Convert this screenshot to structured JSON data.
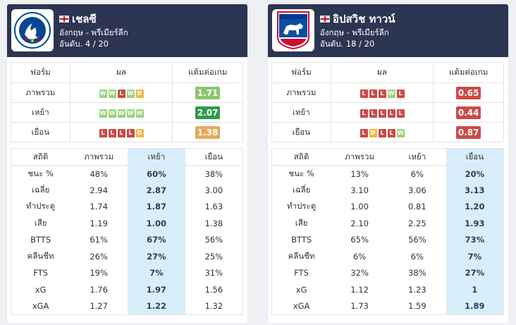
{
  "colors": {
    "header_bg": "#2c3552",
    "win": "#9bd37c",
    "draw": "#efb84b",
    "loss": "#cb4b47",
    "highlight_col": "#d9eefb"
  },
  "left": {
    "team_name": "เชลซี",
    "league": "อังกฤษ - พรีเมียร์ลีก",
    "rank": "อันดับ. 4 / 20",
    "logo_icon": "chelsea-crest",
    "form_headers": [
      "ฟอร์ม",
      "ผล",
      "แต้มต่อเกม"
    ],
    "form_rows": [
      {
        "label": "ภาพรวม",
        "results": [
          "W",
          "W",
          "L",
          "W",
          "D"
        ],
        "ppg": "1.71",
        "ppg_color": "#8cc56e"
      },
      {
        "label": "เหย้า",
        "results": [
          "W",
          "W",
          "W",
          "W",
          "W"
        ],
        "ppg": "2.07",
        "ppg_color": "#2e9b4c"
      },
      {
        "label": "เยือน",
        "results": [
          "L",
          "L",
          "L",
          "L",
          "D"
        ],
        "ppg": "1.38",
        "ppg_color": "#e7a95a"
      }
    ],
    "stats_headers": [
      "สถิติ",
      "ภาพรวม",
      "เหย้า",
      "เยือน"
    ],
    "highlight_column": 2,
    "stats_rows": [
      {
        "label": "ชนะ %",
        "values": [
          "48%",
          "60%",
          "38%"
        ]
      },
      {
        "label": "เฉลี่ย",
        "values": [
          "2.94",
          "2.87",
          "3.00"
        ]
      },
      {
        "label": "ทำประตู",
        "values": [
          "1.74",
          "1.87",
          "1.63"
        ]
      },
      {
        "label": "เสีย",
        "values": [
          "1.19",
          "1.00",
          "1.38"
        ]
      },
      {
        "label": "BTTS",
        "values": [
          "61%",
          "67%",
          "56%"
        ]
      },
      {
        "label": "คลีนชีท",
        "values": [
          "26%",
          "27%",
          "25%"
        ]
      },
      {
        "label": "FTS",
        "values": [
          "19%",
          "7%",
          "31%"
        ]
      },
      {
        "label": "xG",
        "values": [
          "1.76",
          "1.97",
          "1.56"
        ]
      },
      {
        "label": "xGA",
        "values": [
          "1.27",
          "1.22",
          "1.32"
        ]
      }
    ]
  },
  "right": {
    "team_name": "อิปสวิช ทาวน์",
    "league": "อังกฤษ - พรีเมียร์ลีก",
    "rank": "อันดับ. 18 / 20",
    "logo_icon": "ipswich-crest",
    "form_headers": [
      "ฟอร์ม",
      "ผล",
      "แต้มต่อเกม"
    ],
    "form_rows": [
      {
        "label": "ภาพรวม",
        "results": [
          "L",
          "L",
          "L",
          "W",
          "L"
        ],
        "ppg": "0.65",
        "ppg_color": "#cb4b47"
      },
      {
        "label": "เหย้า",
        "results": [
          "L",
          "L",
          "L",
          "L",
          "L"
        ],
        "ppg": "0.44",
        "ppg_color": "#cb4b47"
      },
      {
        "label": "เยือน",
        "results": [
          "L",
          "D",
          "L",
          "L",
          "W"
        ],
        "ppg": "0.87",
        "ppg_color": "#cb4b47"
      }
    ],
    "stats_headers": [
      "สถิติ",
      "ภาพรวม",
      "เหย้า",
      "เยือน"
    ],
    "highlight_column": 3,
    "stats_rows": [
      {
        "label": "ชนะ %",
        "values": [
          "13%",
          "6%",
          "20%"
        ]
      },
      {
        "label": "เฉลี่ย",
        "values": [
          "3.10",
          "3.06",
          "3.13"
        ]
      },
      {
        "label": "ทำประตู",
        "values": [
          "1.00",
          "0.81",
          "1.20"
        ]
      },
      {
        "label": "เสีย",
        "values": [
          "2.10",
          "2.25",
          "1.93"
        ]
      },
      {
        "label": "BTTS",
        "values": [
          "65%",
          "56%",
          "73%"
        ]
      },
      {
        "label": "คลีนชีท",
        "values": [
          "6%",
          "6%",
          "7%"
        ]
      },
      {
        "label": "FTS",
        "values": [
          "32%",
          "38%",
          "27%"
        ]
      },
      {
        "label": "xG",
        "values": [
          "1.12",
          "1.23",
          "1"
        ]
      },
      {
        "label": "xGA",
        "values": [
          "1.73",
          "1.59",
          "1.89"
        ]
      }
    ]
  }
}
